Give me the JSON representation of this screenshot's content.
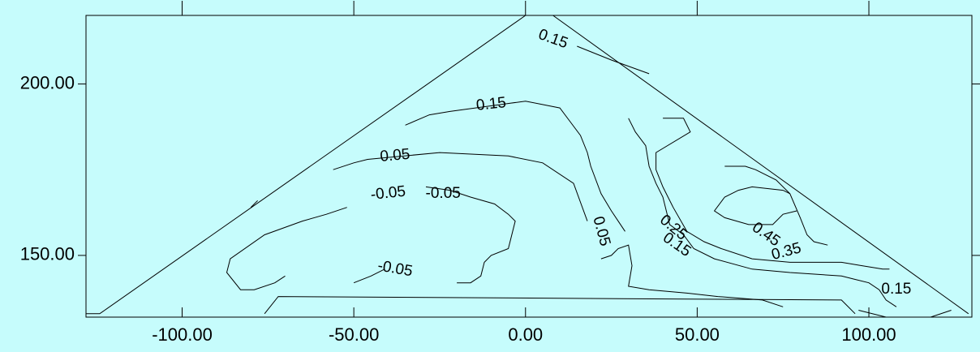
{
  "chart_data": {
    "type": "contour",
    "title": "",
    "xlabel": "",
    "ylabel": "",
    "xlim": [
      -128,
      130
    ],
    "ylim": [
      132,
      220
    ],
    "grid": false,
    "x_ticks": [
      {
        "value": -100,
        "label": "-100.00"
      },
      {
        "value": -50,
        "label": "-50.00"
      },
      {
        "value": 0,
        "label": "0.00"
      },
      {
        "value": 50,
        "label": "50.00"
      },
      {
        "value": 100,
        "label": "100.00"
      }
    ],
    "y_ticks": [
      {
        "value": 150,
        "label": "150.00"
      },
      {
        "value": 200,
        "label": "200.00"
      }
    ],
    "boundary": {
      "outer": [
        [
          -128,
          133
        ],
        [
          -124,
          133
        ],
        [
          0,
          220
        ],
        [
          8,
          220
        ],
        [
          129,
          133
        ]
      ],
      "inner_base": [
        [
          -76,
          133
        ],
        [
          -72,
          138
        ],
        [
          92,
          137
        ],
        [
          96,
          133
        ]
      ]
    },
    "contours": [
      {
        "level": 0.15,
        "label": "0.15",
        "label_at": [
          8,
          213
        ],
        "label_angle": 20,
        "points": [
          [
            15,
            211
          ],
          [
            25,
            207
          ],
          [
            36,
            203
          ]
        ]
      },
      {
        "level": 0.15,
        "label": "0.15",
        "label_at": [
          -10,
          194
        ],
        "label_angle": -6,
        "points": [
          [
            -35,
            188
          ],
          [
            -28,
            191
          ],
          [
            -22,
            192
          ],
          [
            0,
            195
          ],
          [
            10,
            193
          ],
          [
            13,
            189
          ],
          [
            16,
            185
          ],
          [
            18,
            180
          ],
          [
            19,
            176
          ],
          [
            22,
            168
          ],
          [
            25,
            163
          ],
          [
            29,
            157
          ]
        ]
      },
      {
        "level": 0.05,
        "label": "0.05",
        "label_at": [
          -38,
          179
        ],
        "label_angle": -5,
        "points": [
          [
            -56,
            175
          ],
          [
            -50,
            177
          ],
          [
            -46,
            178
          ],
          [
            -25,
            180
          ],
          [
            -5,
            179
          ],
          [
            5,
            177
          ],
          [
            14,
            171
          ],
          [
            18,
            160
          ]
        ]
      },
      {
        "level": 0.05,
        "label": "0.05",
        "label_at": [
          22,
          157
        ],
        "label_angle": 75,
        "points": [
          [
            22,
            149
          ],
          [
            25,
            150
          ],
          [
            27,
            152
          ],
          [
            30,
            153
          ],
          [
            31,
            147
          ],
          [
            30,
            141
          ],
          [
            36,
            140
          ],
          [
            47,
            139
          ],
          [
            56,
            138
          ],
          [
            69,
            137
          ],
          [
            75,
            135
          ]
        ]
      },
      {
        "level": -0.05,
        "label": "-0.05",
        "label_at": [
          -40,
          168
        ],
        "label_angle": -6,
        "points": [
          [
            -52,
            164
          ],
          [
            -58,
            162
          ],
          [
            -65,
            160
          ],
          [
            -76,
            156
          ],
          [
            -86,
            149
          ],
          [
            -87,
            145
          ],
          [
            -83,
            140
          ],
          [
            -79,
            140
          ],
          [
            -73,
            142
          ],
          [
            -70,
            144
          ]
        ]
      },
      {
        "level": -0.05,
        "label": "-0.05",
        "label_at": [
          -24,
          168
        ],
        "label_angle": 0,
        "points": [
          [
            -29,
            170
          ],
          [
            -22,
            169
          ],
          [
            -16,
            167
          ],
          [
            -9,
            165
          ],
          [
            -5,
            162
          ],
          [
            -3,
            160
          ],
          [
            -5,
            152
          ],
          [
            -10,
            150
          ],
          [
            -12,
            148
          ],
          [
            -13,
            144
          ],
          [
            -16,
            142
          ],
          [
            -20,
            142
          ]
        ]
      },
      {
        "level": -0.05,
        "label": "-0.05",
        "label_at": [
          -38,
          146
        ],
        "label_angle": 10,
        "points": [
          [
            -50,
            142
          ],
          [
            -45,
            144
          ],
          [
            -41,
            146
          ]
        ]
      },
      {
        "level": -0.05,
        "label": "",
        "label_at": [
          -78,
          165
        ],
        "label_angle": 0,
        "points": [
          [
            -80,
            164
          ],
          [
            -78,
            166
          ]
        ]
      },
      {
        "level": 0.15,
        "label": "0.15",
        "label_at": [
          44,
          153
        ],
        "label_angle": 35,
        "points": [
          [
            30,
            190
          ],
          [
            32,
            186
          ],
          [
            35,
            182
          ],
          [
            36,
            176
          ],
          [
            38,
            171
          ],
          [
            40,
            167
          ],
          [
            42,
            159
          ],
          [
            46,
            156
          ],
          [
            49,
            152
          ],
          [
            55,
            149
          ],
          [
            66,
            146
          ],
          [
            77,
            145
          ],
          [
            92,
            144
          ],
          [
            96,
            143
          ],
          [
            100,
            142
          ],
          [
            103,
            140
          ],
          [
            105,
            137
          ],
          [
            108,
            135
          ]
        ]
      },
      {
        "level": 0.25,
        "label": "0.25",
        "label_at": [
          43,
          158
        ],
        "label_angle": 40,
        "points": [
          [
            40,
            190
          ],
          [
            46,
            190
          ],
          [
            48,
            186
          ],
          [
            38,
            180
          ],
          [
            38,
            175
          ],
          [
            40,
            170
          ],
          [
            43,
            164
          ],
          [
            47,
            157
          ],
          [
            52,
            154
          ],
          [
            57,
            152
          ],
          [
            66,
            149
          ],
          [
            77,
            148
          ],
          [
            86,
            148
          ],
          [
            92,
            148
          ],
          [
            98,
            147
          ],
          [
            104,
            146
          ],
          [
            106,
            146
          ]
        ]
      },
      {
        "level": 0.35,
        "label": "0.35",
        "label_at": [
          76,
          151
        ],
        "label_angle": -15,
        "points": [
          [
            58,
            176
          ],
          [
            64,
            176
          ],
          [
            67,
            175
          ],
          [
            73,
            172
          ],
          [
            77,
            168
          ],
          [
            80,
            161
          ],
          [
            82,
            156
          ],
          [
            84,
            154
          ],
          [
            88,
            153
          ]
        ]
      },
      {
        "level": 0.45,
        "label": "0.45",
        "label_at": [
          70,
          156
        ],
        "label_angle": 35,
        "points": [
          [
            79,
            163
          ],
          [
            75,
            162
          ],
          [
            72,
            159
          ],
          [
            65,
            159
          ],
          [
            58,
            161
          ],
          [
            55,
            163
          ],
          [
            58,
            167
          ],
          [
            62,
            169
          ],
          [
            66,
            170
          ],
          [
            75,
            169
          ],
          [
            77,
            168
          ]
        ]
      },
      {
        "level": 0.15,
        "label": "0.15",
        "label_at": [
          108,
          140
        ],
        "label_angle": 0,
        "points": [
          [
            97,
            134
          ],
          [
            105,
            132
          ],
          [
            118,
            132
          ],
          [
            124,
            134
          ]
        ]
      }
    ]
  }
}
